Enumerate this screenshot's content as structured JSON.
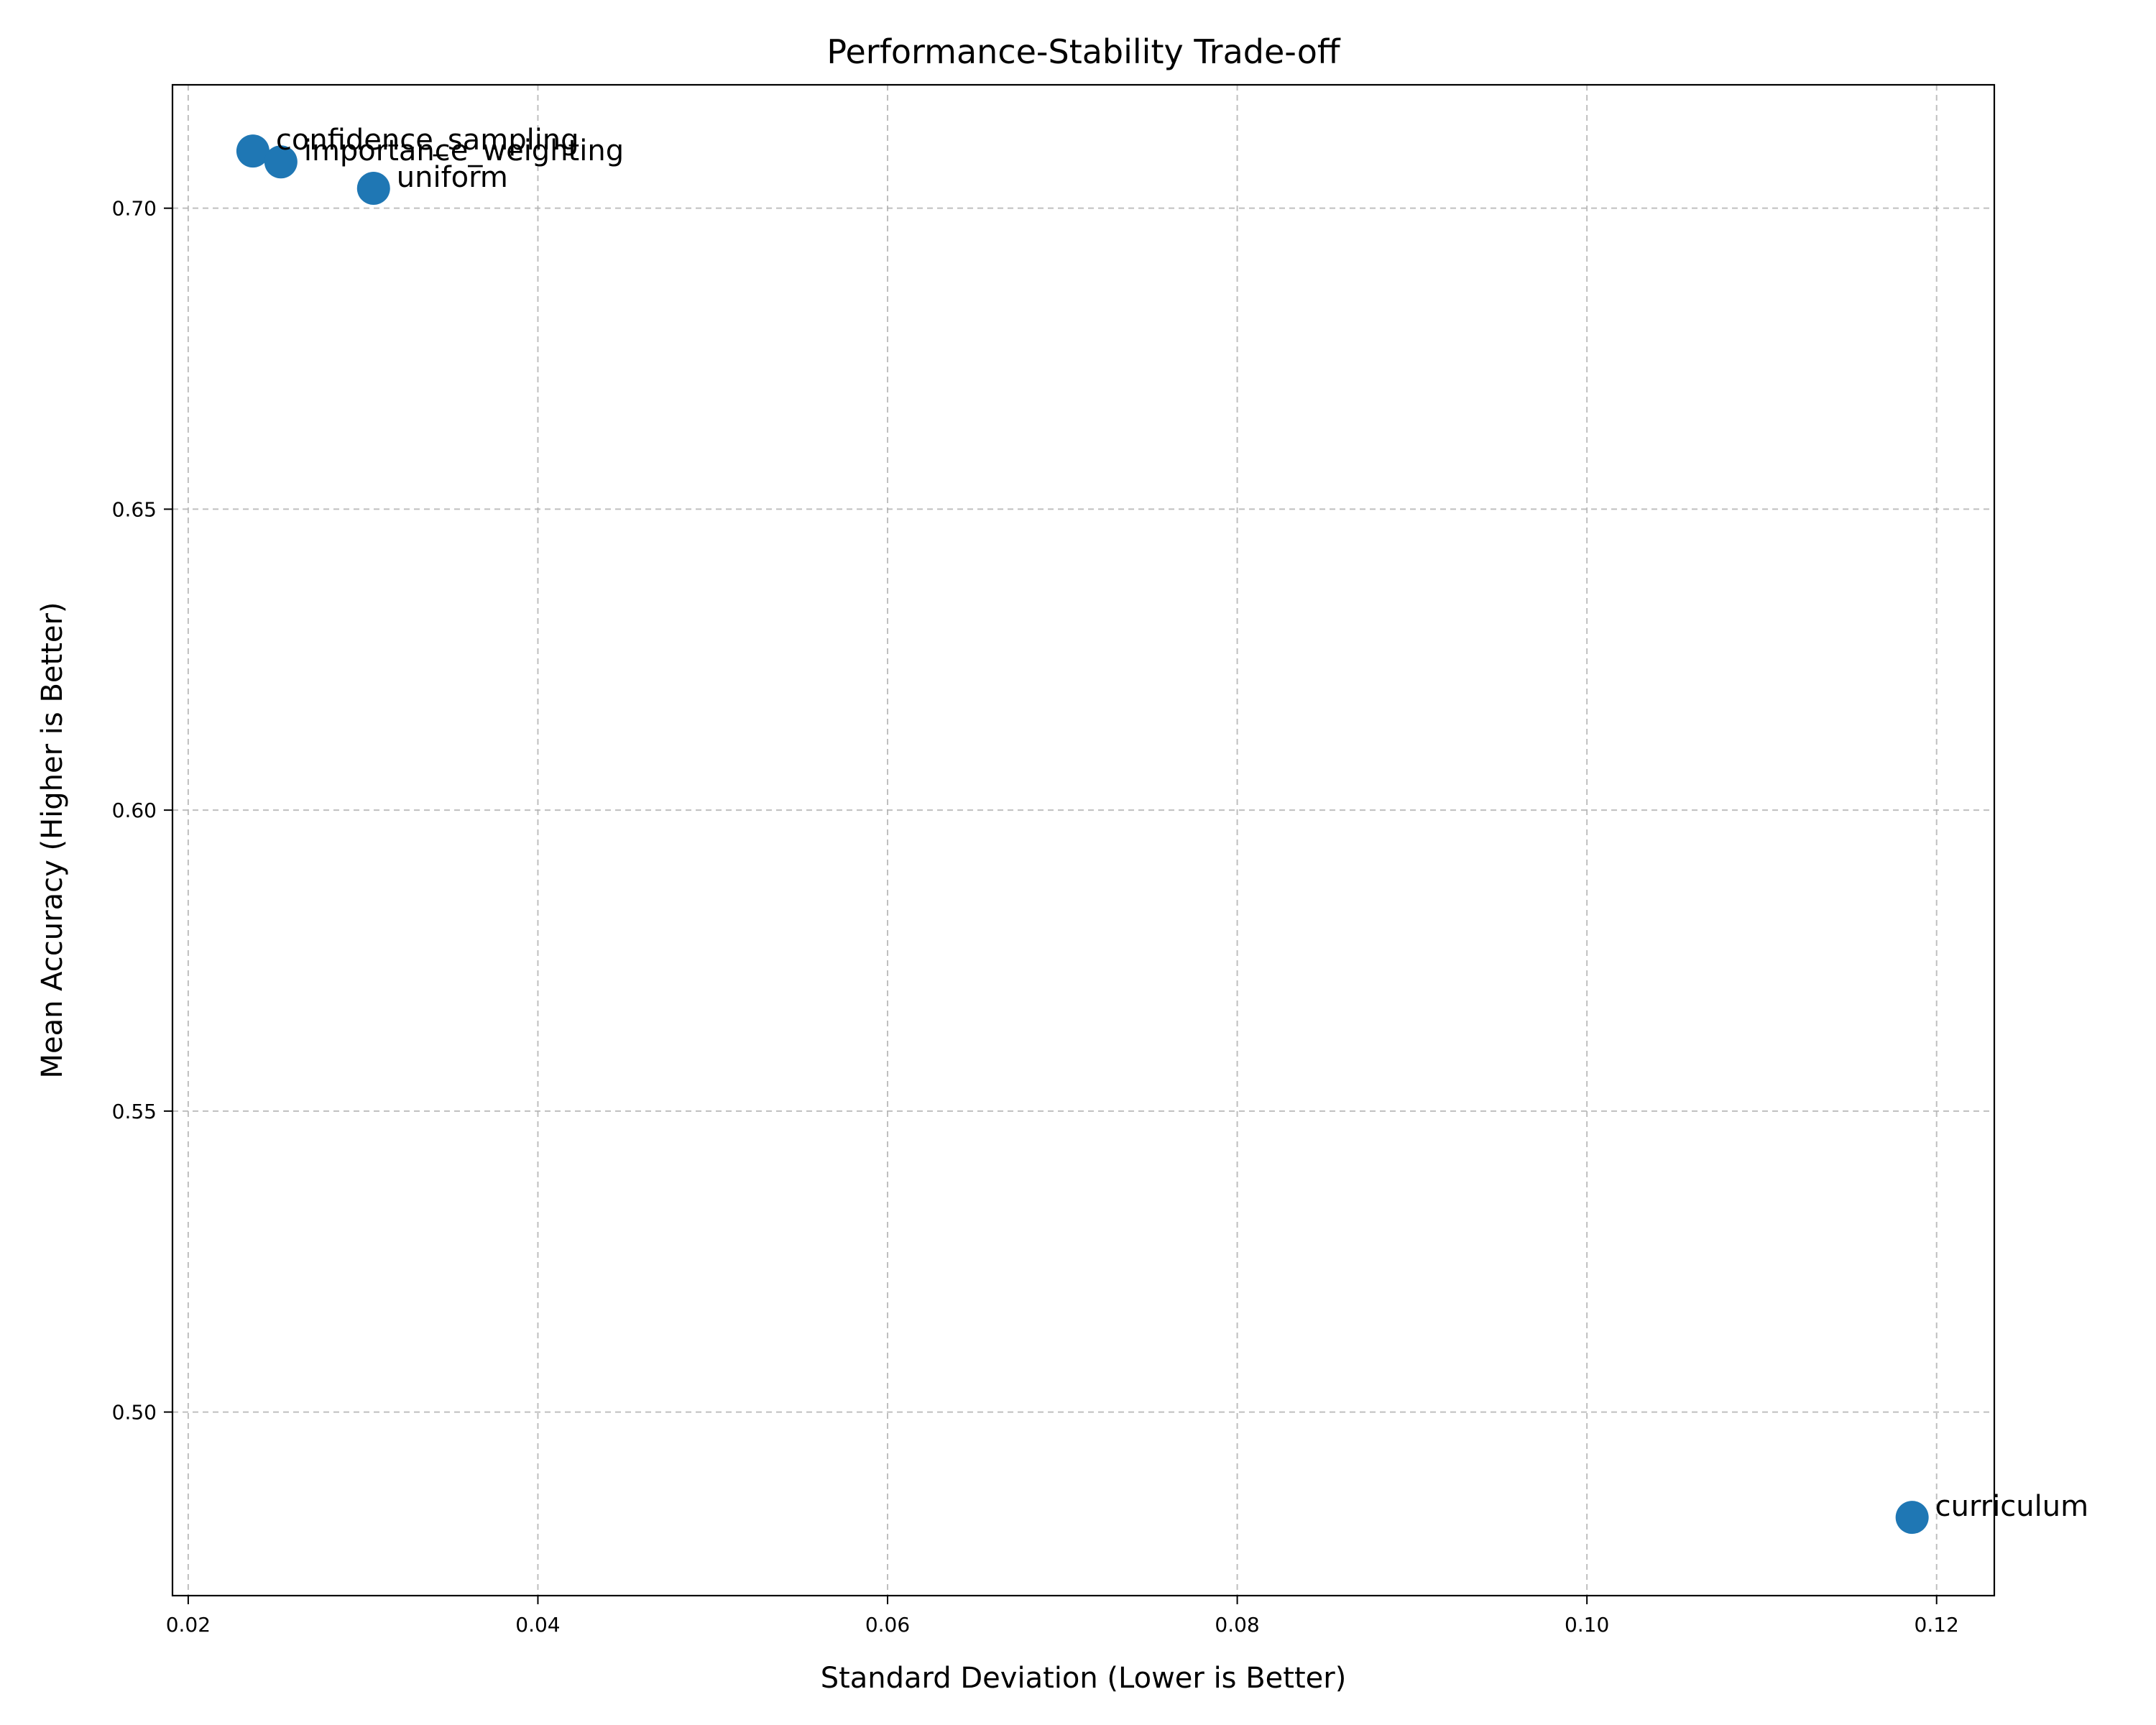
{
  "chart_data": {
    "type": "scatter",
    "title": "Performance-Stability Trade-off",
    "xlabel": "Standard Deviation (Lower is Better)",
    "ylabel": "Mean Accuracy (Higher is Better)",
    "xlim": [
      0.0191,
      0.1233
    ],
    "ylim": [
      0.4695,
      0.7205
    ],
    "xticks": [
      0.02,
      0.04,
      0.06,
      0.08,
      0.1,
      0.12
    ],
    "xtick_labels": [
      "0.02",
      "0.04",
      "0.06",
      "0.08",
      "0.10",
      "0.12"
    ],
    "yticks": [
      0.5,
      0.55,
      0.6,
      0.65,
      0.7
    ],
    "ytick_labels": [
      "0.50",
      "0.55",
      "0.60",
      "0.65",
      "0.70"
    ],
    "grid": true,
    "marker_color": "#1f77b4",
    "points": [
      {
        "label": "confidence_sampling",
        "x": 0.0237,
        "y": 0.7095
      },
      {
        "label": "importance_weighting",
        "x": 0.0253,
        "y": 0.7077
      },
      {
        "label": "uniform",
        "x": 0.0306,
        "y": 0.7033
      },
      {
        "label": "curriculum",
        "x": 0.1186,
        "y": 0.4825
      }
    ]
  }
}
